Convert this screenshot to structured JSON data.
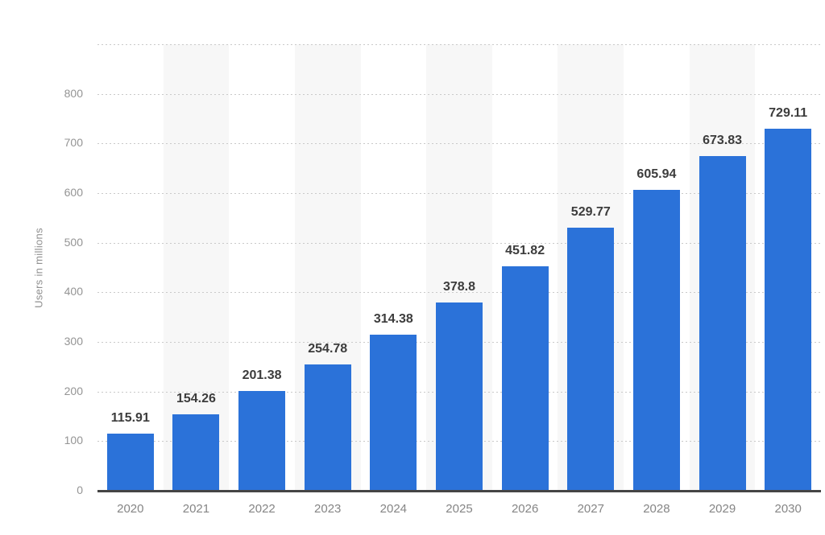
{
  "chart_data": {
    "type": "bar",
    "title": "",
    "categories": [
      "2020",
      "2021",
      "2022",
      "2023",
      "2024",
      "2025",
      "2026",
      "2027",
      "2028",
      "2029",
      "2030"
    ],
    "values": [
      115.91,
      154.26,
      201.38,
      254.78,
      314.38,
      378.8,
      451.82,
      529.77,
      605.94,
      673.83,
      729.11
    ],
    "value_labels": [
      "115.91",
      "154.26",
      "201.38",
      "254.78",
      "314.38",
      "378.8",
      "451.82",
      "529.77",
      "605.94",
      "673.83",
      "729.11"
    ],
    "xlabel": "",
    "ylabel": "Users in millions",
    "ylim": [
      0,
      900
    ],
    "yticks": [
      "0",
      "100",
      "200",
      "300",
      "400",
      "500",
      "600",
      "700",
      "800"
    ],
    "ytick_values": [
      0,
      100,
      200,
      300,
      400,
      500,
      600,
      700,
      800
    ],
    "gridline_values": [
      100,
      200,
      300,
      400,
      500,
      600,
      700,
      800,
      900
    ],
    "grid": "dotted horizontal",
    "legend": "none",
    "banded_column_indices": [
      1,
      3,
      5,
      7,
      9
    ],
    "colors": {
      "bar": "#2b72d9",
      "band": "#f7f7f7",
      "gridline": "#c9c9c9",
      "axis_line": "#454545",
      "tick_label": "#949494",
      "x_label": "#858585",
      "value_label": "#3c3c3c",
      "axis_title": "#8f8f8f",
      "background": "#ffffff"
    }
  }
}
